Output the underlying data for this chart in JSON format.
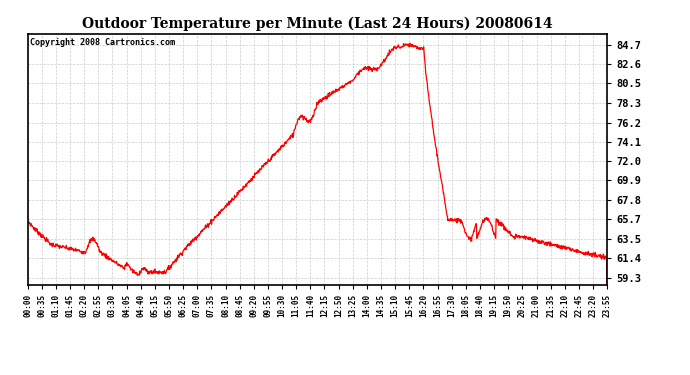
{
  "title": "Outdoor Temperature per Minute (Last 24 Hours) 20080614",
  "copyright": "Copyright 2008 Cartronics.com",
  "line_color": "red",
  "background_color": "white",
  "grid_color": "#c8c8c8",
  "yticks": [
    59.3,
    61.4,
    63.5,
    65.7,
    67.8,
    69.9,
    72.0,
    74.1,
    76.2,
    78.3,
    80.5,
    82.6,
    84.7
  ],
  "ylim": [
    58.5,
    85.9
  ],
  "xtick_labels": [
    "00:00",
    "00:35",
    "01:10",
    "01:45",
    "02:20",
    "02:55",
    "03:30",
    "04:05",
    "04:40",
    "05:15",
    "05:50",
    "06:25",
    "07:00",
    "07:35",
    "08:10",
    "08:45",
    "09:20",
    "09:55",
    "10:30",
    "11:05",
    "11:40",
    "12:15",
    "12:50",
    "13:25",
    "14:00",
    "14:35",
    "15:10",
    "15:45",
    "16:20",
    "16:55",
    "17:30",
    "18:05",
    "18:40",
    "19:15",
    "19:50",
    "20:25",
    "21:00",
    "21:35",
    "22:10",
    "22:45",
    "23:20",
    "23:55"
  ],
  "n_points": 1441,
  "figsize": [
    6.9,
    3.75
  ],
  "dpi": 100
}
